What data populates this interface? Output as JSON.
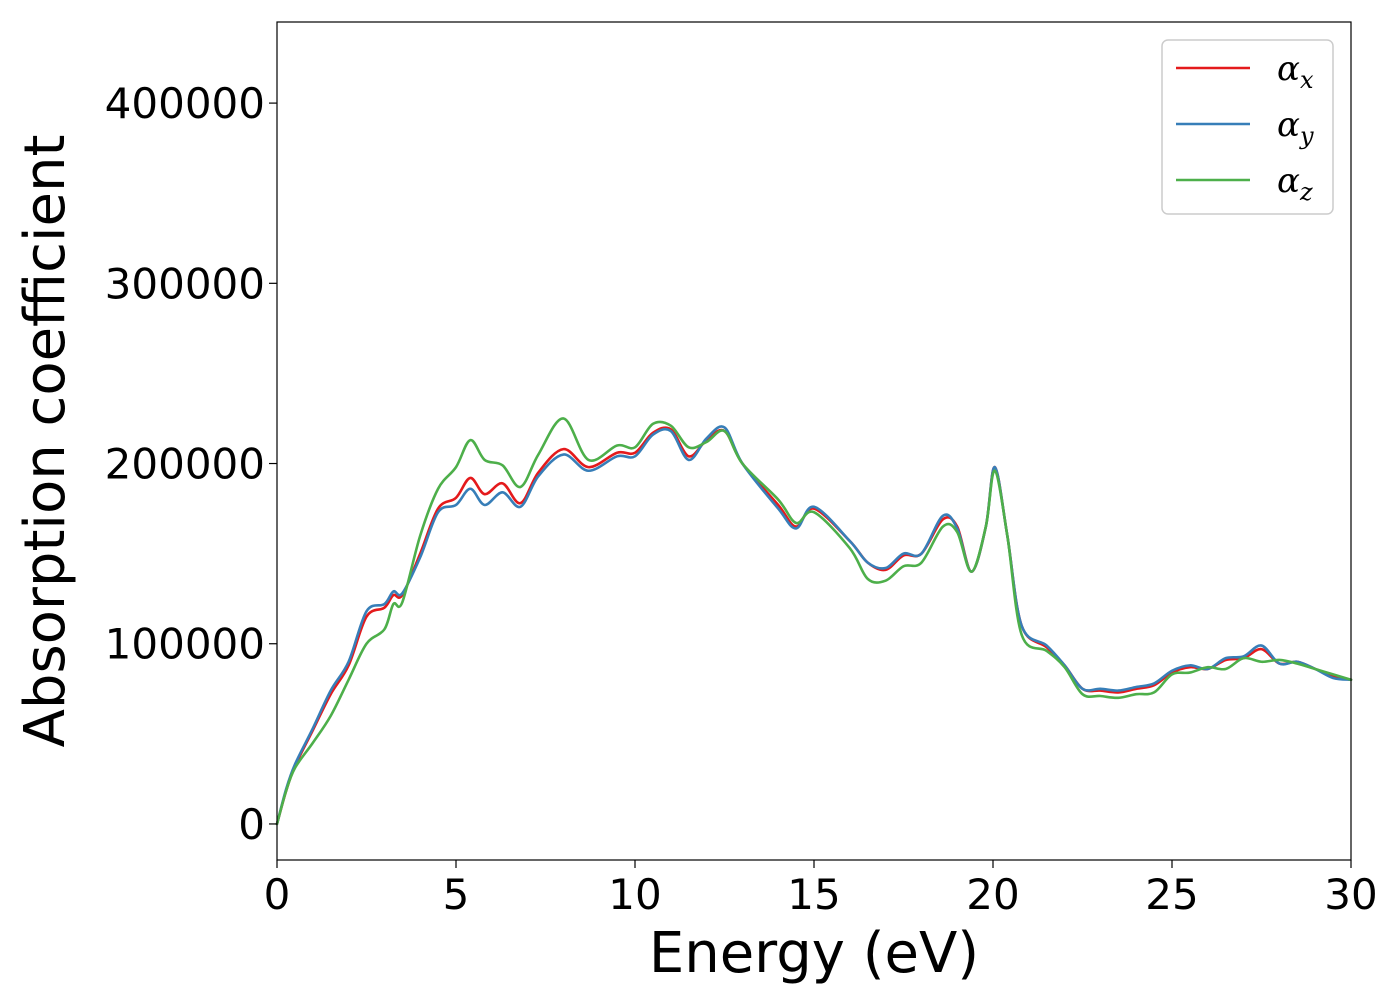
{
  "chart_data": {
    "type": "line",
    "title": "",
    "xlabel": "Energy (eV)",
    "ylabel": "Absorption coefficient",
    "xlim": [
      0,
      30
    ],
    "ylim": [
      -20000,
      445000
    ],
    "xticks": [
      0,
      5,
      10,
      15,
      20,
      25,
      30
    ],
    "yticks": [
      0,
      100000,
      200000,
      300000,
      400000
    ],
    "xtick_labels": [
      "0",
      "5",
      "10",
      "15",
      "20",
      "25",
      "30"
    ],
    "ytick_labels": [
      "0",
      "100000",
      "200000",
      "300000",
      "400000"
    ],
    "grid": false,
    "legend": "top-right",
    "series": [
      {
        "name": "α_x",
        "symbol": "α",
        "subscript": "x",
        "color": "#e41a1c",
        "x": [
          0,
          0.25,
          0.5,
          1.0,
          1.5,
          2.0,
          2.5,
          3.0,
          3.25,
          3.5,
          4.0,
          4.5,
          5.0,
          5.4,
          5.8,
          6.3,
          6.8,
          7.3,
          8.0,
          8.7,
          9.5,
          10.0,
          10.5,
          11.0,
          11.5,
          12.0,
          12.5,
          13.0,
          14.0,
          14.5,
          15.0,
          16.0,
          16.5,
          17.0,
          17.5,
          18.0,
          18.6,
          19.0,
          19.4,
          19.8,
          20.05,
          20.4,
          20.8,
          21.5,
          22.0,
          22.5,
          23.0,
          23.5,
          24.0,
          24.5,
          25.0,
          25.5,
          26.0,
          26.5,
          27.0,
          27.5,
          28.0,
          28.5,
          29.0,
          29.5,
          30.0
        ],
        "values": [
          0,
          18000,
          32000,
          52000,
          72000,
          88000,
          115000,
          120000,
          127000,
          127000,
          150000,
          175000,
          181000,
          192000,
          183000,
          189000,
          178000,
          195000,
          208000,
          198000,
          206000,
          206000,
          217000,
          219000,
          204000,
          213000,
          218000,
          200000,
          177000,
          165000,
          175000,
          157000,
          145000,
          141000,
          149000,
          150000,
          169000,
          165000,
          140000,
          165000,
          198000,
          160000,
          110000,
          98000,
          88000,
          75000,
          74000,
          73000,
          75000,
          77000,
          84000,
          87000,
          86000,
          91000,
          92000,
          97000,
          89000,
          90000,
          86000,
          82000,
          80000
        ]
      },
      {
        "name": "α_y",
        "symbol": "α",
        "subscript": "y",
        "color": "#377eb8",
        "x": [
          0,
          0.25,
          0.5,
          1.0,
          1.5,
          2.0,
          2.5,
          3.0,
          3.25,
          3.5,
          4.0,
          4.5,
          5.0,
          5.4,
          5.8,
          6.3,
          6.8,
          7.3,
          8.0,
          8.7,
          9.5,
          10.0,
          10.5,
          11.0,
          11.5,
          12.0,
          12.5,
          13.0,
          14.0,
          14.5,
          15.0,
          16.0,
          16.5,
          17.0,
          17.5,
          18.0,
          18.6,
          19.0,
          19.4,
          19.8,
          20.05,
          20.4,
          20.8,
          21.5,
          22.0,
          22.5,
          23.0,
          23.5,
          24.0,
          24.5,
          25.0,
          25.5,
          26.0,
          26.5,
          27.0,
          27.5,
          28.0,
          28.5,
          29.0,
          29.5,
          30.0
        ],
        "values": [
          0,
          19000,
          33000,
          53000,
          74000,
          90000,
          118000,
          122000,
          129000,
          128000,
          148000,
          173000,
          177000,
          186000,
          177000,
          184000,
          176000,
          193000,
          205000,
          196000,
          204000,
          204000,
          216000,
          218000,
          202000,
          214000,
          220000,
          200000,
          175000,
          164000,
          176000,
          157000,
          145000,
          142000,
          150000,
          150000,
          171000,
          164000,
          140000,
          165000,
          198000,
          160000,
          110000,
          99000,
          88000,
          75000,
          75000,
          74000,
          76000,
          78000,
          85000,
          88000,
          86000,
          92000,
          93000,
          99000,
          89000,
          90000,
          86000,
          81000,
          80000
        ]
      },
      {
        "name": "α_z",
        "symbol": "α",
        "subscript": "z",
        "color": "#4daf4a",
        "x": [
          0,
          0.25,
          0.5,
          1.0,
          1.5,
          2.0,
          2.5,
          3.0,
          3.25,
          3.5,
          4.0,
          4.5,
          5.0,
          5.4,
          5.8,
          6.3,
          6.8,
          7.3,
          8.0,
          8.7,
          9.5,
          10.0,
          10.5,
          11.0,
          11.5,
          12.0,
          12.5,
          13.0,
          14.0,
          14.5,
          15.0,
          16.0,
          16.5,
          17.0,
          17.5,
          18.0,
          18.6,
          19.0,
          19.4,
          19.8,
          20.05,
          20.4,
          20.8,
          21.5,
          22.0,
          22.5,
          23.0,
          23.5,
          24.0,
          24.5,
          25.0,
          25.5,
          26.0,
          26.5,
          27.0,
          27.5,
          28.0,
          28.5,
          29.0,
          29.5,
          30.0
        ],
        "values": [
          0,
          18000,
          31000,
          45000,
          60000,
          80000,
          100000,
          108000,
          122000,
          123000,
          160000,
          186000,
          198000,
          213000,
          202000,
          199000,
          187000,
          205000,
          225000,
          202000,
          210000,
          209000,
          222000,
          221000,
          209000,
          212000,
          218000,
          200000,
          180000,
          167000,
          173000,
          153000,
          136000,
          135000,
          143000,
          145000,
          165000,
          162000,
          140000,
          165000,
          196000,
          160000,
          105000,
          96000,
          87000,
          72000,
          71000,
          70000,
          72000,
          73000,
          83000,
          84000,
          87000,
          86000,
          92000,
          90000,
          91000,
          89000,
          86000,
          83000,
          80000
        ]
      }
    ]
  }
}
